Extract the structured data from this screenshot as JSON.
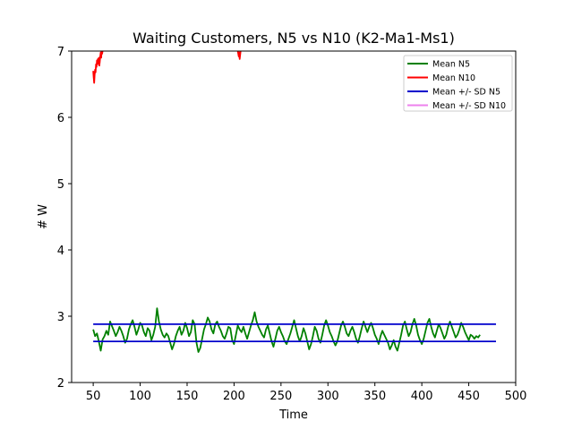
{
  "chart_data": {
    "type": "line",
    "title": "Waiting Customers, N5 vs N10 (K2-Ma1-Ms1)",
    "xlabel": "Time",
    "ylabel": "# W",
    "xlim": [
      27,
      500
    ],
    "ylim": [
      2,
      7
    ],
    "xticks": [
      "50",
      "100",
      "150",
      "200",
      "250",
      "300",
      "350",
      "400",
      "450",
      "500"
    ],
    "yticks": [
      "2",
      "3",
      "4",
      "5",
      "6",
      "7"
    ],
    "legend_position": "upper-right",
    "grid": false,
    "series": [
      {
        "name": "Mean N5",
        "color": "#008000",
        "x_start": 50,
        "x_step": 2,
        "values": [
          2.8,
          2.7,
          2.74,
          2.62,
          2.48,
          2.65,
          2.7,
          2.78,
          2.72,
          2.92,
          2.85,
          2.78,
          2.7,
          2.76,
          2.84,
          2.78,
          2.7,
          2.6,
          2.66,
          2.8,
          2.88,
          2.94,
          2.84,
          2.72,
          2.8,
          2.9,
          2.86,
          2.76,
          2.7,
          2.82,
          2.78,
          2.64,
          2.72,
          2.84,
          3.12,
          2.92,
          2.8,
          2.72,
          2.68,
          2.74,
          2.7,
          2.6,
          2.5,
          2.58,
          2.7,
          2.78,
          2.84,
          2.72,
          2.78,
          2.9,
          2.82,
          2.7,
          2.76,
          2.94,
          2.88,
          2.6,
          2.46,
          2.52,
          2.66,
          2.8,
          2.88,
          2.98,
          2.92,
          2.8,
          2.74,
          2.88,
          2.92,
          2.84,
          2.78,
          2.7,
          2.66,
          2.74,
          2.84,
          2.82,
          2.64,
          2.58,
          2.72,
          2.86,
          2.8,
          2.76,
          2.84,
          2.74,
          2.66,
          2.76,
          2.86,
          2.94,
          3.06,
          2.92,
          2.84,
          2.78,
          2.72,
          2.68,
          2.8,
          2.86,
          2.74,
          2.62,
          2.54,
          2.66,
          2.78,
          2.84,
          2.76,
          2.7,
          2.62,
          2.58,
          2.66,
          2.74,
          2.84,
          2.94,
          2.82,
          2.7,
          2.62,
          2.7,
          2.82,
          2.74,
          2.62,
          2.5,
          2.58,
          2.7,
          2.84,
          2.78,
          2.66,
          2.6,
          2.72,
          2.86,
          2.94,
          2.86,
          2.76,
          2.7,
          2.62,
          2.56,
          2.62,
          2.74,
          2.86,
          2.92,
          2.84,
          2.74,
          2.7,
          2.78,
          2.84,
          2.76,
          2.66,
          2.6,
          2.7,
          2.82,
          2.92,
          2.84,
          2.76,
          2.84,
          2.9,
          2.82,
          2.72,
          2.66,
          2.58,
          2.7,
          2.78,
          2.72,
          2.66,
          2.6,
          2.5,
          2.56,
          2.64,
          2.54,
          2.48,
          2.6,
          2.72,
          2.86,
          2.92,
          2.8,
          2.7,
          2.76,
          2.88,
          2.96,
          2.86,
          2.72,
          2.64,
          2.58,
          2.66,
          2.78,
          2.9,
          2.96,
          2.84,
          2.74,
          2.68,
          2.78,
          2.88,
          2.82,
          2.74,
          2.66,
          2.72,
          2.84,
          2.92,
          2.84,
          2.76,
          2.68,
          2.72,
          2.8,
          2.9,
          2.84,
          2.76,
          2.7,
          2.64,
          2.72,
          2.7,
          2.66,
          2.7,
          2.68,
          2.72
        ]
      },
      {
        "name": "Mean N10",
        "color": "#ff0000",
        "segments": [
          {
            "x": [
              50.0,
              50.5,
              51.0,
              51.5,
              52.0,
              52.5,
              53.0,
              53.5,
              54.0,
              54.5,
              55.0,
              55.5,
              56.0,
              56.5,
              57.0,
              57.5,
              58.0,
              58.5,
              59.0,
              59.5,
              60.0
            ],
            "values": [
              6.7,
              6.6,
              6.52,
              6.64,
              6.72,
              6.68,
              6.8,
              6.76,
              6.86,
              6.8,
              6.88,
              6.82,
              6.9,
              6.78,
              6.84,
              6.92,
              6.98,
              6.9,
              7.0,
              6.96,
              7.0
            ]
          },
          {
            "x": [
              204.0,
              204.5,
              205.0,
              205.5,
              206.0,
              206.5,
              207.0
            ],
            "values": [
              7.0,
              6.96,
              6.92,
              6.98,
              6.88,
              6.94,
              7.0
            ]
          }
        ]
      },
      {
        "name": "Mean +/- SD N5",
        "color": "#0000cc",
        "lines": [
          {
            "x": [
              50,
              479
            ],
            "values": [
              2.88,
              2.88
            ]
          },
          {
            "x": [
              50,
              479
            ],
            "values": [
              2.62,
              2.62
            ]
          }
        ]
      },
      {
        "name": "Mean +/- SD N10",
        "color": "#ee82ee",
        "lines": []
      }
    ]
  }
}
